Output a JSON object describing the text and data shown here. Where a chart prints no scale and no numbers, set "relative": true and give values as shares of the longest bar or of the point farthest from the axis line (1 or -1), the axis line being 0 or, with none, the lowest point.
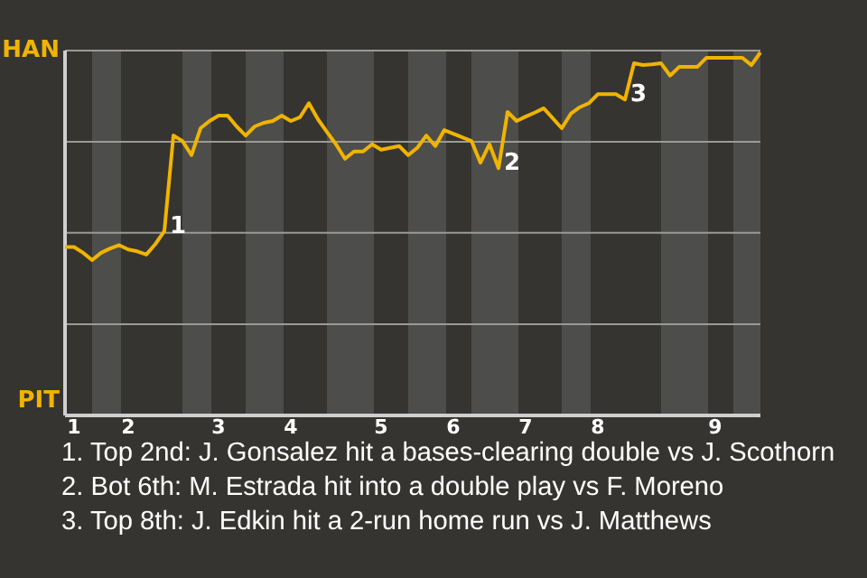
{
  "chart_data": {
    "type": "line",
    "relative": true,
    "categories": [
      null,
      "1",
      null,
      null,
      null,
      null,
      null,
      "2",
      null,
      null,
      null,
      null,
      null,
      null,
      null,
      null,
      null,
      "3",
      null,
      null,
      null,
      null,
      null,
      null,
      null,
      "4",
      null,
      null,
      null,
      null,
      null,
      null,
      null,
      null,
      null,
      "5",
      null,
      null,
      null,
      null,
      null,
      null,
      null,
      "6",
      null,
      null,
      null,
      null,
      null,
      null,
      null,
      "7",
      null,
      null,
      null,
      null,
      null,
      null,
      null,
      "8",
      null,
      null,
      null,
      null,
      null,
      null,
      null,
      null,
      null,
      null,
      null,
      null,
      "9",
      null,
      null,
      null,
      null,
      null
    ],
    "series": [
      {
        "color": "#f0b400",
        "values": [
          0.464,
          0.464,
          0.448,
          0.428,
          0.448,
          0.46,
          0.469,
          0.457,
          0.452,
          0.443,
          0.472,
          0.508,
          0.771,
          0.756,
          0.717,
          0.791,
          0.811,
          0.826,
          0.826,
          0.796,
          0.771,
          0.796,
          0.806,
          0.811,
          0.826,
          0.811,
          0.821,
          0.86,
          0.816,
          0.781,
          0.747,
          0.707,
          0.727,
          0.727,
          0.747,
          0.732,
          0.737,
          0.742,
          0.717,
          0.737,
          0.771,
          0.742,
          0.786,
          0.776,
          0.766,
          0.756,
          0.696,
          0.747,
          0.681,
          0.836,
          0.811,
          0.823,
          0.834,
          0.846,
          0.819,
          0.791,
          0.831,
          0.849,
          0.86,
          0.885,
          0.885,
          0.885,
          0.87,
          0.97,
          0.965,
          0.967,
          0.97,
          0.936,
          0.96,
          0.96,
          0.96,
          0.985,
          0.985,
          0.985,
          0.985,
          0.985,
          0.965,
          1
        ]
      }
    ],
    "marker": "none",
    "line_style": "solid",
    "ref_lines": [
      {
        "axis": "y",
        "value": 1.005,
        "label": "HAN",
        "color": "#9a9a98"
      },
      {
        "axis": "y",
        "value": 0.754,
        "color": "#9a9a98"
      },
      {
        "axis": "y",
        "value": 0.503,
        "color": "#9a9a98"
      },
      {
        "axis": "y",
        "value": 0.251,
        "color": "#9a9a98"
      }
    ],
    "annotations": [
      "PIT",
      "1",
      "2",
      "3",
      "1. Top 2nd: J. Gonsalez hit a bases-clearing double vs J. Scothorn",
      "2. Bot 6th: M. Estrada hit into a double play vs F. Moreno",
      "3. Top 8th: J. Edkin hit a 2-run home run vs J. Matthews"
    ]
  }
}
